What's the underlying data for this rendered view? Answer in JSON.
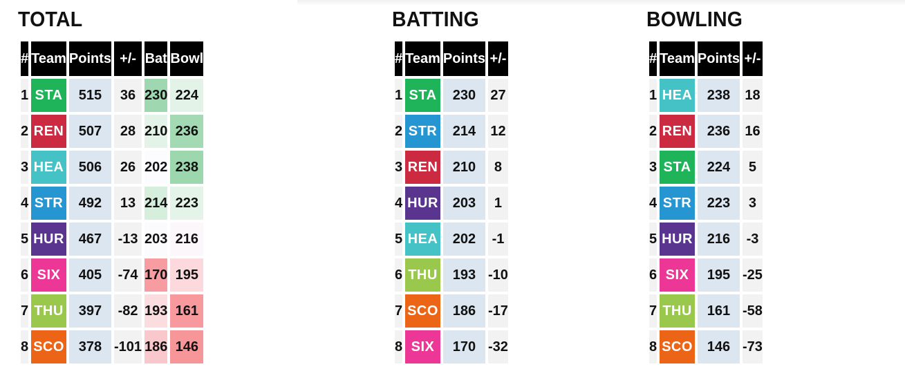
{
  "panels": [
    {
      "title": "TOTAL",
      "headers": [
        "#",
        "Team",
        "Points",
        "+/-",
        "Bat",
        "Bowl"
      ],
      "rows": [
        {
          "rank": "1",
          "team": "STA",
          "color": "#1fb35a",
          "points": "515",
          "pm": "36",
          "bat": "230",
          "bat_bg": "#9fd8b0",
          "bowl": "224",
          "bowl_bg": "#e3f3e7"
        },
        {
          "rank": "2",
          "team": "REN",
          "color": "#cc2a40",
          "points": "507",
          "pm": "28",
          "bat": "210",
          "bat_bg": "#e3f3e7",
          "bowl": "236",
          "bowl_bg": "#a3dab3"
        },
        {
          "rank": "3",
          "team": "HEA",
          "color": "#45c2c5",
          "points": "506",
          "pm": "26",
          "bat": "202",
          "bat_bg": "#fcfcff",
          "bowl": "238",
          "bowl_bg": "#9cd7ae"
        },
        {
          "rank": "4",
          "team": "STR",
          "color": "#2596d1",
          "points": "492",
          "pm": "13",
          "bat": "214",
          "bat_bg": "#d6eedc",
          "bowl": "223",
          "bowl_bg": "#e5f4e9"
        },
        {
          "rank": "5",
          "team": "HUR",
          "color": "#5a3590",
          "points": "467",
          "pm": "-13",
          "bat": "203",
          "bat_bg": "#fbfbfe",
          "bowl": "216",
          "bowl_bg": "#fcf7fa"
        },
        {
          "rank": "6",
          "team": "SIX",
          "color": "#ec3796",
          "points": "405",
          "pm": "-74",
          "bat": "170",
          "bat_bg": "#f79ca0",
          "bowl": "195",
          "bowl_bg": "#fbd9dc"
        },
        {
          "rank": "7",
          "team": "THU",
          "color": "#99c84c",
          "points": "397",
          "pm": "-82",
          "bat": "193",
          "bat_bg": "#fbdde0",
          "bowl": "161",
          "bowl_bg": "#f7999d"
        },
        {
          "rank": "8",
          "team": "SCO",
          "color": "#ec6416",
          "points": "378",
          "pm": "-101",
          "bat": "186",
          "bat_bg": "#f9c8cc",
          "bowl": "146",
          "bowl_bg": "#f69699"
        }
      ]
    },
    {
      "title": "BATTING",
      "headers": [
        "#",
        "Team",
        "Points",
        "+/-"
      ],
      "rows": [
        {
          "rank": "1",
          "team": "STA",
          "color": "#1fb35a",
          "points": "230",
          "pm": "27"
        },
        {
          "rank": "2",
          "team": "STR",
          "color": "#2596d1",
          "points": "214",
          "pm": "12"
        },
        {
          "rank": "3",
          "team": "REN",
          "color": "#cc2a40",
          "points": "210",
          "pm": "8"
        },
        {
          "rank": "4",
          "team": "HUR",
          "color": "#5a3590",
          "points": "203",
          "pm": "1"
        },
        {
          "rank": "5",
          "team": "HEA",
          "color": "#45c2c5",
          "points": "202",
          "pm": "-1"
        },
        {
          "rank": "6",
          "team": "THU",
          "color": "#99c84c",
          "points": "193",
          "pm": "-10"
        },
        {
          "rank": "7",
          "team": "SCO",
          "color": "#ec6416",
          "points": "186",
          "pm": "-17"
        },
        {
          "rank": "8",
          "team": "SIX",
          "color": "#ec3796",
          "points": "170",
          "pm": "-32"
        }
      ]
    },
    {
      "title": "BOWLING",
      "headers": [
        "#",
        "Team",
        "Points",
        "+/-"
      ],
      "rows": [
        {
          "rank": "1",
          "team": "HEA",
          "color": "#45c2c5",
          "points": "238",
          "pm": "18"
        },
        {
          "rank": "2",
          "team": "REN",
          "color": "#cc2a40",
          "points": "236",
          "pm": "16"
        },
        {
          "rank": "3",
          "team": "STA",
          "color": "#1fb35a",
          "points": "224",
          "pm": "5"
        },
        {
          "rank": "4",
          "team": "STR",
          "color": "#2596d1",
          "points": "223",
          "pm": "3"
        },
        {
          "rank": "5",
          "team": "HUR",
          "color": "#5a3590",
          "points": "216",
          "pm": "-3"
        },
        {
          "rank": "6",
          "team": "SIX",
          "color": "#ec3796",
          "points": "195",
          "pm": "-25"
        },
        {
          "rank": "7",
          "team": "THU",
          "color": "#99c84c",
          "points": "161",
          "pm": "-58"
        },
        {
          "rank": "8",
          "team": "SCO",
          "color": "#ec6416",
          "points": "146",
          "pm": "-73"
        }
      ]
    }
  ]
}
